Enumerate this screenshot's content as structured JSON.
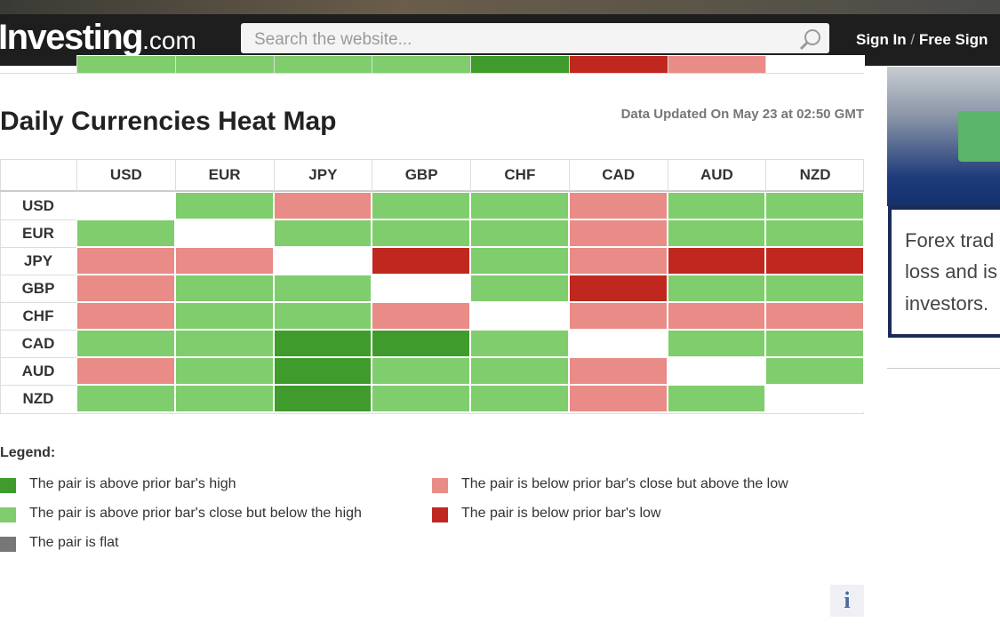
{
  "header": {
    "logo": "Investing",
    "logo_suffix": ".com",
    "search_placeholder": "Search the website...",
    "sign_in": "Sign In",
    "separator": "/",
    "free_sign": "Free Sign"
  },
  "title": "Daily Currencies Heat Map",
  "updated": "Data Updated On May 23 at 02:50 GMT",
  "previous_table_tail": [
    1,
    1,
    1,
    1,
    0,
    4,
    3,
    null
  ],
  "table": {
    "columns": [
      "USD",
      "EUR",
      "JPY",
      "GBP",
      "CHF",
      "CAD",
      "AUD",
      "NZD"
    ],
    "rows": [
      {
        "label": "USD",
        "cells": [
          null,
          1,
          3,
          1,
          1,
          3,
          1,
          1
        ]
      },
      {
        "label": "EUR",
        "cells": [
          1,
          null,
          1,
          1,
          1,
          3,
          1,
          1
        ]
      },
      {
        "label": "JPY",
        "cells": [
          3,
          3,
          null,
          4,
          1,
          3,
          4,
          4
        ]
      },
      {
        "label": "GBP",
        "cells": [
          3,
          1,
          1,
          null,
          1,
          4,
          1,
          1
        ]
      },
      {
        "label": "CHF",
        "cells": [
          3,
          1,
          1,
          3,
          null,
          3,
          3,
          3
        ]
      },
      {
        "label": "CAD",
        "cells": [
          1,
          1,
          0,
          0,
          1,
          null,
          1,
          1
        ]
      },
      {
        "label": "AUD",
        "cells": [
          3,
          1,
          0,
          1,
          1,
          3,
          null,
          1
        ]
      },
      {
        "label": "NZD",
        "cells": [
          1,
          1,
          0,
          1,
          1,
          3,
          1,
          null
        ]
      }
    ]
  },
  "legend": {
    "title": "Legend:",
    "items": [
      {
        "label": "The pair is above prior bar's high",
        "color": "#3f9b2b"
      },
      {
        "label": "The pair is above prior bar's close but below the high",
        "color": "#7fcd6d"
      },
      {
        "label": "The pair is flat",
        "color": "#777777"
      },
      {
        "label": "The pair is below prior bar's close but above the low",
        "color": "#e98b87"
      },
      {
        "label": "The pair is below prior bar's low",
        "color": "#c0281f"
      }
    ]
  },
  "ad": {
    "lines": [
      "Forex trad",
      "loss and is",
      "investors."
    ]
  }
}
